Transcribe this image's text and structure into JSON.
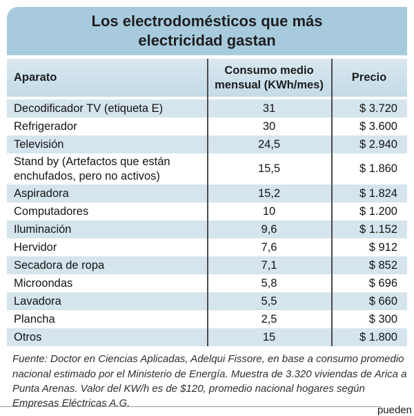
{
  "title": {
    "line1": "Los electrodomésticos que más",
    "line2": "electricidad gastan"
  },
  "chart_data": {
    "type": "table",
    "title": "Los electrodomésticos que más electricidad gastan",
    "columns": [
      "Aparato",
      "Consumo medio mensual (KWh/mes)",
      "Precio"
    ],
    "rows": [
      {
        "aparato": "Decodificador TV (etiqueta E)",
        "consumo": "31",
        "precio": "$ 3.720"
      },
      {
        "aparato": "Refrigerador",
        "consumo": "30",
        "precio": "$ 3.600"
      },
      {
        "aparato": "Televisión",
        "consumo": "24,5",
        "precio": "$ 2.940"
      },
      {
        "aparato": "Stand by (Artefactos que están enchufados, pero no activos)",
        "consumo": "15,5",
        "precio": "$ 1.860"
      },
      {
        "aparato": "Aspiradora",
        "consumo": "15,2",
        "precio": "$ 1.824"
      },
      {
        "aparato": "Computadores",
        "consumo": "10",
        "precio": "$ 1.200"
      },
      {
        "aparato": "Iluminación",
        "consumo": "9,6",
        "precio": "$ 1.152"
      },
      {
        "aparato": "Hervidor",
        "consumo": "7,6",
        "precio": "$ 912"
      },
      {
        "aparato": "Secadora de ropa",
        "consumo": "7,1",
        "precio": "$ 852"
      },
      {
        "aparato": "Microondas",
        "consumo": "5,8",
        "precio": "$ 696"
      },
      {
        "aparato": "Lavadora",
        "consumo": "5,5",
        "precio": "$ 660"
      },
      {
        "aparato": "Plancha",
        "consumo": "2,5",
        "precio": "$ 300"
      },
      {
        "aparato": "Otros",
        "consumo": "15",
        "precio": "$ 1.800"
      }
    ]
  },
  "footer": {
    "source": "Fuente: Doctor en Ciencias Aplicadas, Adelqui Fissore, en base a consumo promedio nacional estimado por el Ministerio de Energía.  Muestra de 3.320 viviendas de Arica a Punta Arenas. Valor del KW/h es de $120,  promedio nacional hogares según Empresas Eléctricas A.G.",
    "clipped_text": "pueden"
  },
  "colors": {
    "title_bg": "#a7cbdd",
    "header_bg": "#c3dae7",
    "stripe_bg": "#d5e4ed",
    "divider": "#4a4a4a"
  }
}
